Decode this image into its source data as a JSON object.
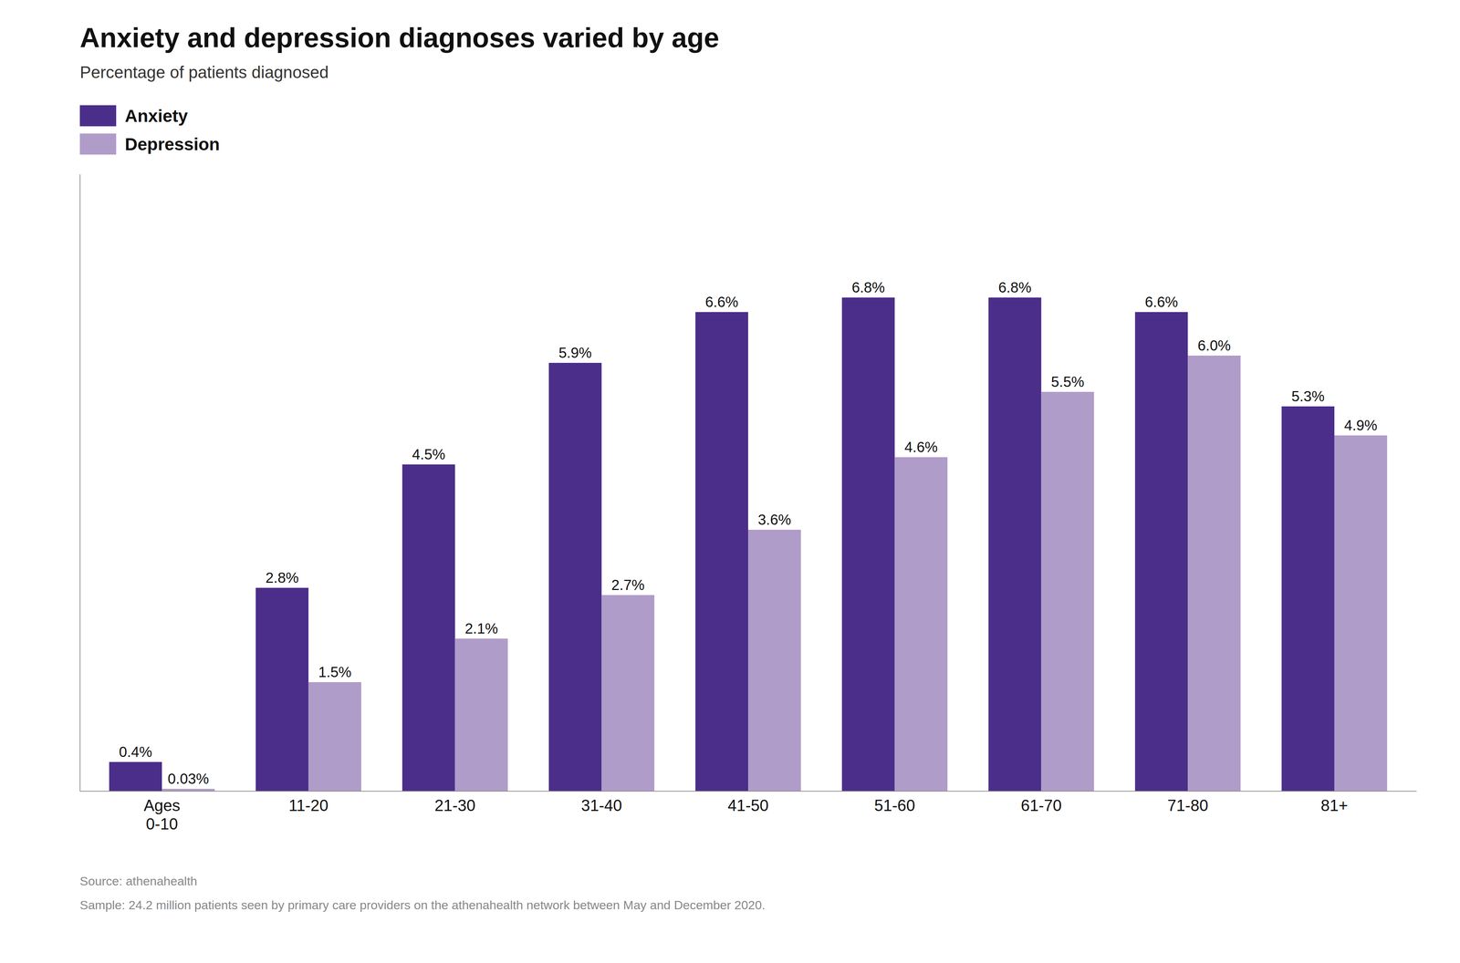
{
  "chart_data": {
    "type": "bar",
    "title": "Anxiety and depression diagnoses varied by age",
    "subtitle": "Percentage of patients diagnosed",
    "categories": [
      "Ages\n0-10",
      "11-20",
      "21-30",
      "31-40",
      "41-50",
      "51-60",
      "61-70",
      "71-80",
      "81+"
    ],
    "series": [
      {
        "name": "Anxiety",
        "color": "#4b2e8a",
        "values": [
          0.4,
          2.8,
          4.5,
          5.9,
          6.6,
          6.8,
          6.8,
          6.6,
          5.3
        ],
        "value_labels": [
          "0.4%",
          "2.8%",
          "4.5%",
          "5.9%",
          "6.6%",
          "6.8%",
          "6.8%",
          "6.6%",
          "5.3%"
        ]
      },
      {
        "name": "Depression",
        "color": "#b09cc8",
        "values": [
          0.03,
          1.5,
          2.1,
          2.7,
          3.6,
          4.6,
          5.5,
          6.0,
          4.9
        ],
        "value_labels": [
          "0.03%",
          "1.5%",
          "2.1%",
          "2.7%",
          "3.6%",
          "4.6%",
          "5.5%",
          "6.0%",
          "4.9%"
        ]
      }
    ],
    "ylim": [
      0,
      8.5
    ],
    "grid": false,
    "legend": "top-left",
    "data_labels": true,
    "tick_labels": "x",
    "annotations": [
      "Source: athenahealth",
      "Sample: 24.2 million patients seen by primary care providers on the athenahealth network between May and December 2020."
    ]
  }
}
